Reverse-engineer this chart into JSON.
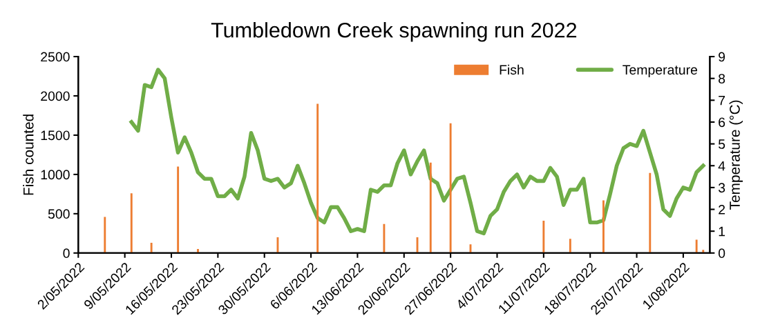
{
  "chart_data": {
    "type": "bar",
    "title": "Tumbledown Creek spawning run 2022",
    "ylabel": "Fish counted",
    "y2label": "Temperature (°C)",
    "xlim": [
      "2022-05-02",
      "2022-08-05"
    ],
    "xticks": [
      {
        "value": "2022-05-02",
        "label": "2/05/2022"
      },
      {
        "value": "2022-05-09",
        "label": "9/05/2022"
      },
      {
        "value": "2022-05-16",
        "label": "16/05/2022"
      },
      {
        "value": "2022-05-23",
        "label": "23/05/2022"
      },
      {
        "value": "2022-05-30",
        "label": "30/05/2022"
      },
      {
        "value": "2022-06-06",
        "label": "6/06/2022"
      },
      {
        "value": "2022-06-13",
        "label": "13/06/2022"
      },
      {
        "value": "2022-06-20",
        "label": "20/06/2022"
      },
      {
        "value": "2022-06-27",
        "label": "27/06/2022"
      },
      {
        "value": "2022-07-04",
        "label": "4/07/2022"
      },
      {
        "value": "2022-07-11",
        "label": "11/07/2022"
      },
      {
        "value": "2022-07-18",
        "label": "18/07/2022"
      },
      {
        "value": "2022-07-25",
        "label": "25/07/2022"
      },
      {
        "value": "2022-08-01",
        "label": "1/08/2022"
      }
    ],
    "ylim": [
      0,
      2500
    ],
    "yticks": [
      0,
      500,
      1000,
      1500,
      2000,
      2500
    ],
    "y2lim": [
      0,
      9
    ],
    "y2ticks": [
      0,
      1,
      2,
      3,
      4,
      5,
      6,
      7,
      8,
      9
    ],
    "grid": false,
    "legend": "top right",
    "series": [
      {
        "name": "Fish",
        "color": "#ed7d31",
        "x": [
          "2022-05-06",
          "2022-05-10",
          "2022-05-13",
          "2022-05-17",
          "2022-05-20",
          "2022-05-23",
          "2022-05-26",
          "2022-06-01",
          "2022-06-07",
          "2022-06-17",
          "2022-06-22",
          "2022-06-24",
          "2022-06-27",
          "2022-06-30",
          "2022-07-04",
          "2022-07-11",
          "2022-07-15",
          "2022-07-20",
          "2022-07-27",
          "2022-08-03",
          "2022-08-04"
        ],
        "values": [
          460,
          760,
          130,
          1100,
          50,
          null,
          null,
          200,
          1900,
          370,
          200,
          1150,
          1650,
          110,
          null,
          410,
          180,
          670,
          1020,
          170,
          40
        ]
      },
      {
        "name": "Temperature",
        "type": "line",
        "axis": "y2",
        "color": "#70ad47",
        "x": [
          "2022-05-10",
          "2022-05-11",
          "2022-05-12",
          "2022-05-13",
          "2022-05-14",
          "2022-05-15",
          "2022-05-16",
          "2022-05-17",
          "2022-05-18",
          "2022-05-19",
          "2022-05-20",
          "2022-05-21",
          "2022-05-22",
          "2022-05-23",
          "2022-05-24",
          "2022-05-25",
          "2022-05-26",
          "2022-05-27",
          "2022-05-28",
          "2022-05-29",
          "2022-05-30",
          "2022-05-31",
          "2022-06-01",
          "2022-06-02",
          "2022-06-03",
          "2022-06-04",
          "2022-06-05",
          "2022-06-06",
          "2022-06-07",
          "2022-06-08",
          "2022-06-09",
          "2022-06-10",
          "2022-06-11",
          "2022-06-12",
          "2022-06-13",
          "2022-06-14",
          "2022-06-15",
          "2022-06-16",
          "2022-06-17",
          "2022-06-18",
          "2022-06-19",
          "2022-06-20",
          "2022-06-21",
          "2022-06-22",
          "2022-06-23",
          "2022-06-24",
          "2022-06-25",
          "2022-06-26",
          "2022-06-27",
          "2022-06-28",
          "2022-06-29",
          "2022-06-30",
          "2022-07-01",
          "2022-07-02",
          "2022-07-03",
          "2022-07-04",
          "2022-07-05",
          "2022-07-06",
          "2022-07-07",
          "2022-07-08",
          "2022-07-09",
          "2022-07-10",
          "2022-07-11",
          "2022-07-12",
          "2022-07-13",
          "2022-07-14",
          "2022-07-15",
          "2022-07-16",
          "2022-07-17",
          "2022-07-18",
          "2022-07-19",
          "2022-07-20",
          "2022-07-21",
          "2022-07-22",
          "2022-07-23",
          "2022-07-24",
          "2022-07-25",
          "2022-07-26",
          "2022-07-27",
          "2022-07-28",
          "2022-07-29",
          "2022-07-30",
          "2022-07-31",
          "2022-08-01",
          "2022-08-02",
          "2022-08-03",
          "2022-08-04"
        ],
        "values": [
          6.0,
          5.6,
          7.7,
          7.6,
          8.4,
          8.0,
          6.2,
          4.6,
          5.3,
          4.6,
          3.7,
          3.4,
          3.4,
          2.6,
          2.6,
          2.9,
          2.5,
          3.5,
          5.5,
          4.7,
          3.4,
          3.3,
          3.4,
          3.0,
          3.2,
          4.0,
          3.2,
          2.3,
          1.6,
          1.4,
          2.1,
          2.1,
          1.6,
          1.0,
          1.1,
          1.0,
          2.9,
          2.8,
          3.1,
          3.1,
          4.1,
          4.7,
          3.6,
          4.2,
          4.7,
          3.4,
          3.2,
          2.4,
          2.9,
          3.4,
          3.5,
          2.3,
          1.0,
          0.9,
          1.7,
          2.0,
          2.8,
          3.3,
          3.6,
          3.0,
          3.5,
          3.3,
          3.3,
          3.9,
          3.5,
          2.2,
          2.9,
          2.9,
          3.4,
          1.4,
          1.4,
          1.5,
          2.7,
          4.0,
          4.8,
          5.0,
          4.9,
          5.6,
          4.6,
          3.6,
          2.0,
          1.7,
          2.5,
          3.0,
          2.9,
          3.7,
          4.0
        ]
      }
    ]
  }
}
